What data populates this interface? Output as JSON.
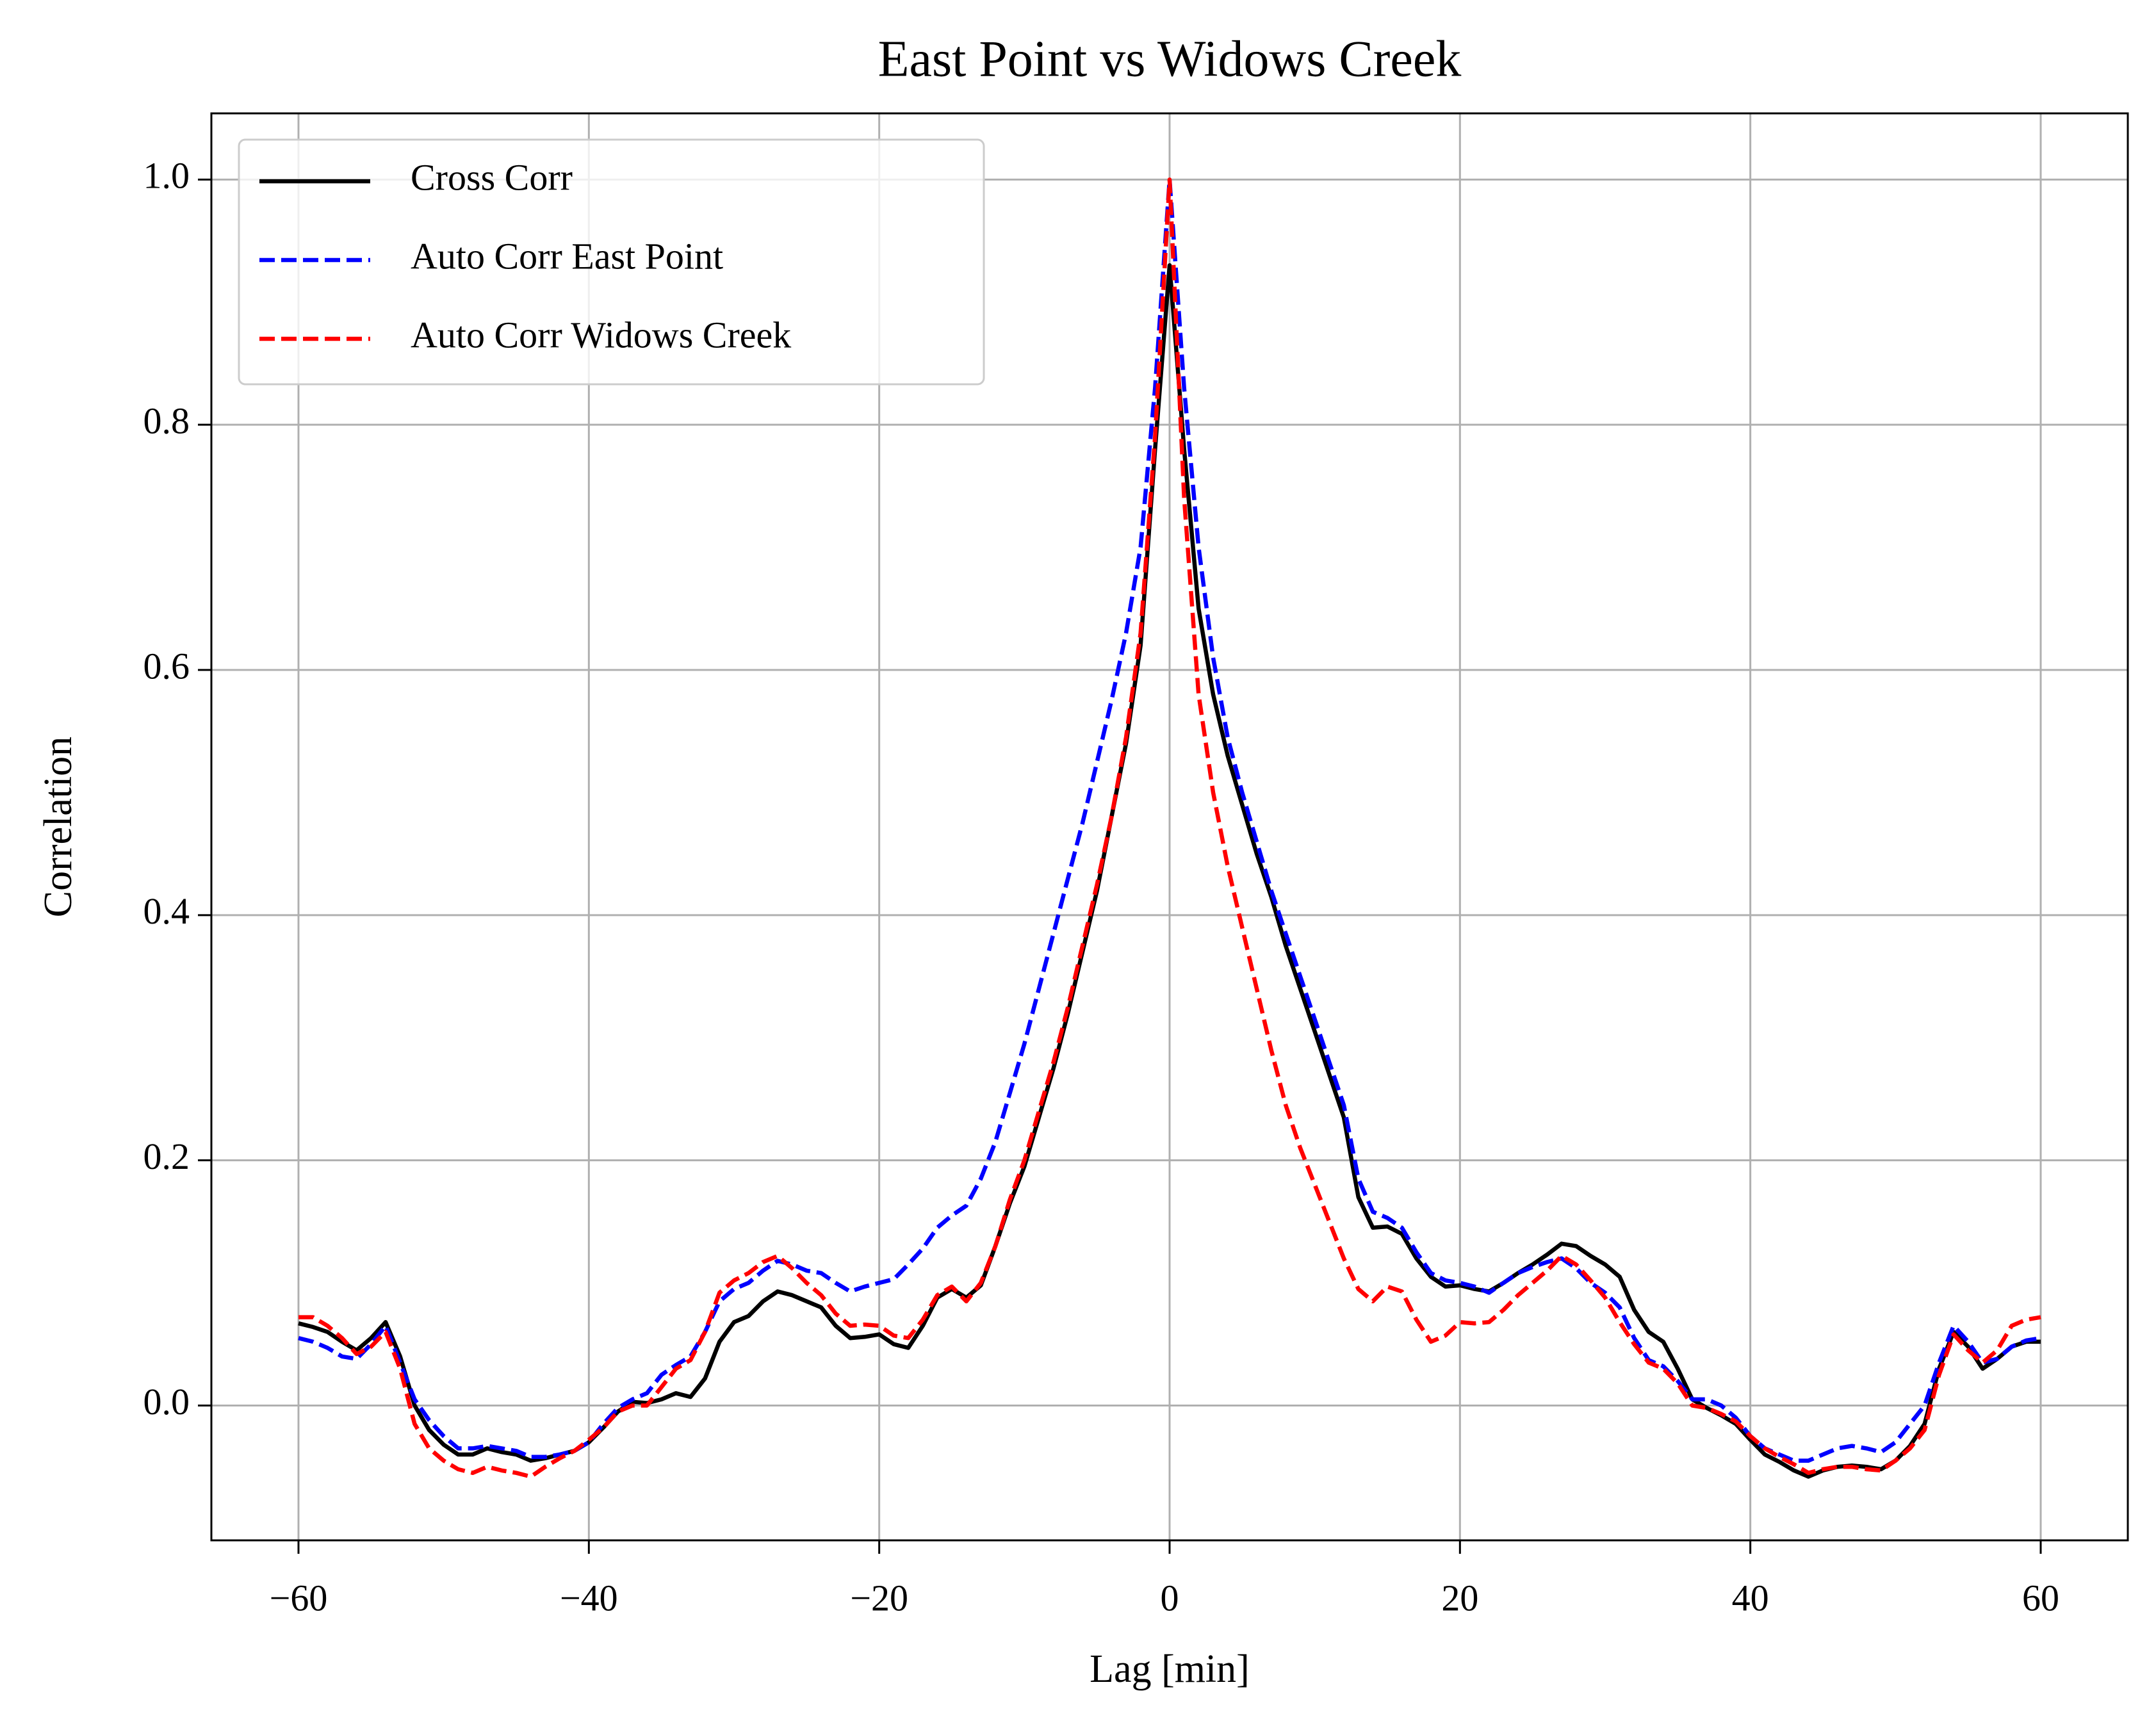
{
  "chart_data": {
    "type": "line",
    "title": "East Point vs Widows Creek",
    "x_label": "Lag [min]",
    "y_label": "Correlation",
    "x": [
      -60,
      -59,
      -58,
      -57,
      -56,
      -55,
      -54,
      -53,
      -52,
      -51,
      -50,
      -49,
      -48,
      -47,
      -46,
      -45,
      -44,
      -43,
      -42,
      -41,
      -40,
      -39,
      -38,
      -37,
      -36,
      -35,
      -34,
      -33,
      -32,
      -31,
      -30,
      -29,
      -28,
      -27,
      -26,
      -25,
      -24,
      -23,
      -22,
      -21,
      -20,
      -19,
      -18,
      -17,
      -16,
      -15,
      -14,
      -13,
      -12,
      -11,
      -10,
      -9,
      -8,
      -7,
      -6,
      -5,
      -4,
      -3,
      -2,
      -1,
      0,
      1,
      2,
      3,
      4,
      5,
      6,
      7,
      8,
      9,
      10,
      11,
      12,
      13,
      14,
      15,
      16,
      17,
      18,
      19,
      20,
      21,
      22,
      23,
      24,
      25,
      26,
      27,
      28,
      29,
      30,
      31,
      32,
      33,
      34,
      35,
      36,
      37,
      38,
      39,
      40,
      41,
      42,
      43,
      44,
      45,
      46,
      47,
      48,
      49,
      50,
      51,
      52,
      53,
      54,
      55,
      56,
      57,
      58,
      59,
      60
    ],
    "series": [
      {
        "name": "Cross Corr",
        "color": "#000000",
        "dash": "solid",
        "values": [
          0.067,
          0.064,
          0.06,
          0.052,
          0.045,
          0.055,
          0.068,
          0.04,
          0.0,
          -0.02,
          -0.032,
          -0.04,
          -0.04,
          -0.035,
          -0.038,
          -0.04,
          -0.045,
          -0.043,
          -0.04,
          -0.037,
          -0.03,
          -0.018,
          -0.005,
          0.003,
          0.002,
          0.005,
          0.01,
          0.007,
          0.022,
          0.052,
          0.068,
          0.073,
          0.085,
          0.093,
          0.09,
          0.085,
          0.08,
          0.065,
          0.055,
          0.056,
          0.058,
          0.05,
          0.047,
          0.065,
          0.088,
          0.095,
          0.088,
          0.098,
          0.13,
          0.165,
          0.195,
          0.235,
          0.275,
          0.32,
          0.37,
          0.42,
          0.48,
          0.54,
          0.62,
          0.78,
          0.93,
          0.78,
          0.65,
          0.58,
          0.53,
          0.49,
          0.45,
          0.415,
          0.375,
          0.34,
          0.305,
          0.27,
          0.235,
          0.17,
          0.145,
          0.146,
          0.14,
          0.12,
          0.105,
          0.097,
          0.098,
          0.095,
          0.093,
          0.1,
          0.108,
          0.115,
          0.123,
          0.132,
          0.13,
          0.122,
          0.115,
          0.105,
          0.078,
          0.06,
          0.052,
          0.03,
          0.005,
          -0.002,
          -0.008,
          -0.015,
          -0.028,
          -0.04,
          -0.046,
          -0.053,
          -0.058,
          -0.053,
          -0.05,
          -0.049,
          -0.05,
          -0.052,
          -0.045,
          -0.033,
          -0.015,
          0.03,
          0.06,
          0.048,
          0.03,
          0.038,
          0.048,
          0.052,
          0.052
        ]
      },
      {
        "name": "Auto Corr East Point",
        "color": "#0000ff",
        "dash": "dashed",
        "values": [
          0.055,
          0.052,
          0.047,
          0.04,
          0.038,
          0.05,
          0.065,
          0.035,
          0.005,
          -0.012,
          -0.025,
          -0.035,
          -0.035,
          -0.033,
          -0.035,
          -0.037,
          -0.042,
          -0.042,
          -0.04,
          -0.037,
          -0.03,
          -0.015,
          -0.002,
          0.005,
          0.01,
          0.025,
          0.033,
          0.04,
          0.06,
          0.085,
          0.095,
          0.1,
          0.11,
          0.118,
          0.115,
          0.11,
          0.108,
          0.1,
          0.093,
          0.097,
          0.1,
          0.103,
          0.115,
          0.128,
          0.145,
          0.155,
          0.163,
          0.185,
          0.215,
          0.255,
          0.295,
          0.34,
          0.385,
          0.43,
          0.475,
          0.525,
          0.575,
          0.63,
          0.7,
          0.83,
          1.0,
          0.83,
          0.7,
          0.61,
          0.545,
          0.5,
          0.46,
          0.42,
          0.385,
          0.35,
          0.315,
          0.28,
          0.245,
          0.185,
          0.158,
          0.153,
          0.145,
          0.125,
          0.108,
          0.102,
          0.1,
          0.097,
          0.092,
          0.1,
          0.108,
          0.113,
          0.117,
          0.12,
          0.112,
          0.1,
          0.092,
          0.08,
          0.055,
          0.037,
          0.032,
          0.02,
          0.005,
          0.005,
          0.0,
          -0.01,
          -0.025,
          -0.035,
          -0.04,
          -0.045,
          -0.045,
          -0.04,
          -0.035,
          -0.033,
          -0.035,
          -0.038,
          -0.03,
          -0.015,
          0.0,
          0.035,
          0.065,
          0.052,
          0.035,
          0.038,
          0.048,
          0.053,
          0.055
        ]
      },
      {
        "name": "Auto Corr Widows Creek",
        "color": "#ff0000",
        "dash": "dashed",
        "values": [
          0.072,
          0.072,
          0.065,
          0.055,
          0.042,
          0.048,
          0.06,
          0.03,
          -0.015,
          -0.035,
          -0.045,
          -0.052,
          -0.055,
          -0.05,
          -0.053,
          -0.055,
          -0.058,
          -0.05,
          -0.043,
          -0.037,
          -0.028,
          -0.018,
          -0.005,
          0.0,
          0.0,
          0.015,
          0.03,
          0.037,
          0.06,
          0.092,
          0.102,
          0.108,
          0.117,
          0.122,
          0.112,
          0.1,
          0.09,
          0.075,
          0.065,
          0.066,
          0.065,
          0.057,
          0.055,
          0.07,
          0.09,
          0.097,
          0.085,
          0.1,
          0.13,
          0.168,
          0.2,
          0.24,
          0.28,
          0.325,
          0.375,
          0.425,
          0.48,
          0.545,
          0.63,
          0.79,
          1.0,
          0.74,
          0.58,
          0.5,
          0.44,
          0.39,
          0.34,
          0.29,
          0.245,
          0.21,
          0.18,
          0.15,
          0.12,
          0.095,
          0.085,
          0.097,
          0.093,
          0.07,
          0.052,
          0.057,
          0.068,
          0.067,
          0.068,
          0.078,
          0.09,
          0.1,
          0.11,
          0.122,
          0.115,
          0.102,
          0.088,
          0.068,
          0.05,
          0.035,
          0.03,
          0.018,
          0.0,
          -0.002,
          -0.007,
          -0.013,
          -0.025,
          -0.035,
          -0.042,
          -0.048,
          -0.055,
          -0.052,
          -0.05,
          -0.05,
          -0.052,
          -0.053,
          -0.045,
          -0.035,
          -0.02,
          0.025,
          0.058,
          0.045,
          0.035,
          0.045,
          0.065,
          0.07,
          0.072
        ]
      }
    ],
    "xlim": [
      -66,
      66
    ],
    "ylim": [
      -0.11,
      1.054
    ],
    "xticks": [
      {
        "value": -60,
        "label": "−60"
      },
      {
        "value": -40,
        "label": "−40"
      },
      {
        "value": -20,
        "label": "−20"
      },
      0,
      20,
      40,
      60
    ],
    "yticks": [
      {
        "value": 0,
        "label": "0.0"
      },
      0.2,
      0.4,
      0.6,
      0.8,
      {
        "value": 1,
        "label": "1.0"
      }
    ],
    "grid": true,
    "legend": "upper left"
  }
}
